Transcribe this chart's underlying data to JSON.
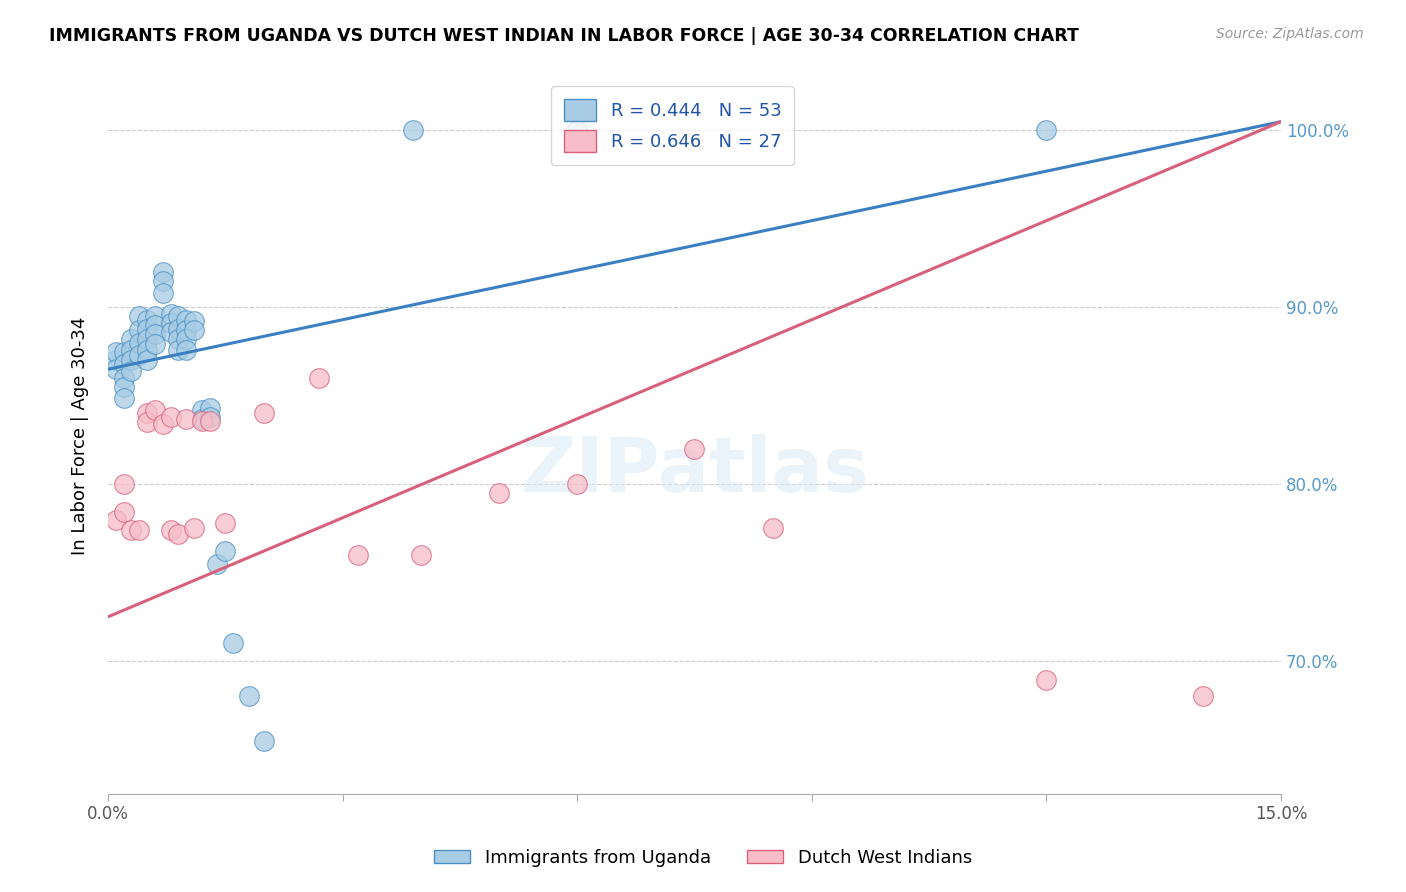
{
  "title": "IMMIGRANTS FROM UGANDA VS DUTCH WEST INDIAN IN LABOR FORCE | AGE 30-34 CORRELATION CHART",
  "source": "Source: ZipAtlas.com",
  "ylabel": "In Labor Force | Age 30-34",
  "xlim": [
    0.0,
    0.15
  ],
  "ylim": [
    0.625,
    1.03
  ],
  "yticks": [
    0.7,
    0.8,
    0.9,
    1.0
  ],
  "ytick_labels": [
    "70.0%",
    "80.0%",
    "90.0%",
    "100.0%"
  ],
  "blue_R": 0.444,
  "blue_N": 53,
  "pink_R": 0.646,
  "pink_N": 27,
  "blue_color": "#a8cce4",
  "pink_color": "#f7bdc8",
  "blue_edge_color": "#4a90c4",
  "pink_edge_color": "#d9607a",
  "blue_line_color": "#3a7fc1",
  "pink_line_color": "#d9607a",
  "legend_label_blue": "Immigrants from Uganda",
  "legend_label_pink": "Dutch West Indians",
  "watermark": "ZIPatlas",
  "blue_line_y0": 0.865,
  "blue_line_y1": 1.005,
  "pink_line_y0": 0.725,
  "pink_line_y1": 1.005,
  "blue_scatter_x": [
    0.001,
    0.001,
    0.001,
    0.002,
    0.002,
    0.002,
    0.002,
    0.002,
    0.003,
    0.003,
    0.003,
    0.003,
    0.004,
    0.004,
    0.004,
    0.004,
    0.005,
    0.005,
    0.005,
    0.005,
    0.005,
    0.006,
    0.006,
    0.006,
    0.006,
    0.007,
    0.007,
    0.007,
    0.008,
    0.008,
    0.008,
    0.009,
    0.009,
    0.009,
    0.009,
    0.01,
    0.01,
    0.01,
    0.01,
    0.011,
    0.011,
    0.012,
    0.012,
    0.013,
    0.013,
    0.014,
    0.015,
    0.016,
    0.018,
    0.02,
    0.039,
    0.06,
    0.12
  ],
  "blue_scatter_y": [
    0.87,
    0.875,
    0.865,
    0.875,
    0.868,
    0.86,
    0.855,
    0.849,
    0.882,
    0.876,
    0.87,
    0.864,
    0.895,
    0.887,
    0.88,
    0.873,
    0.893,
    0.888,
    0.882,
    0.876,
    0.87,
    0.895,
    0.89,
    0.885,
    0.879,
    0.92,
    0.915,
    0.908,
    0.896,
    0.891,
    0.886,
    0.895,
    0.888,
    0.882,
    0.876,
    0.893,
    0.887,
    0.882,
    0.876,
    0.892,
    0.887,
    0.842,
    0.837,
    0.843,
    0.838,
    0.755,
    0.762,
    0.71,
    0.68,
    0.655,
    1.0,
    1.0,
    1.0
  ],
  "pink_scatter_x": [
    0.001,
    0.002,
    0.002,
    0.003,
    0.004,
    0.005,
    0.005,
    0.006,
    0.007,
    0.008,
    0.008,
    0.009,
    0.01,
    0.011,
    0.012,
    0.013,
    0.015,
    0.02,
    0.027,
    0.032,
    0.04,
    0.05,
    0.06,
    0.075,
    0.085,
    0.12,
    0.14
  ],
  "pink_scatter_y": [
    0.78,
    0.8,
    0.784,
    0.774,
    0.774,
    0.84,
    0.835,
    0.842,
    0.834,
    0.838,
    0.774,
    0.772,
    0.837,
    0.775,
    0.836,
    0.836,
    0.778,
    0.84,
    0.86,
    0.76,
    0.76,
    0.795,
    0.8,
    0.82,
    0.775,
    0.689,
    0.68
  ]
}
